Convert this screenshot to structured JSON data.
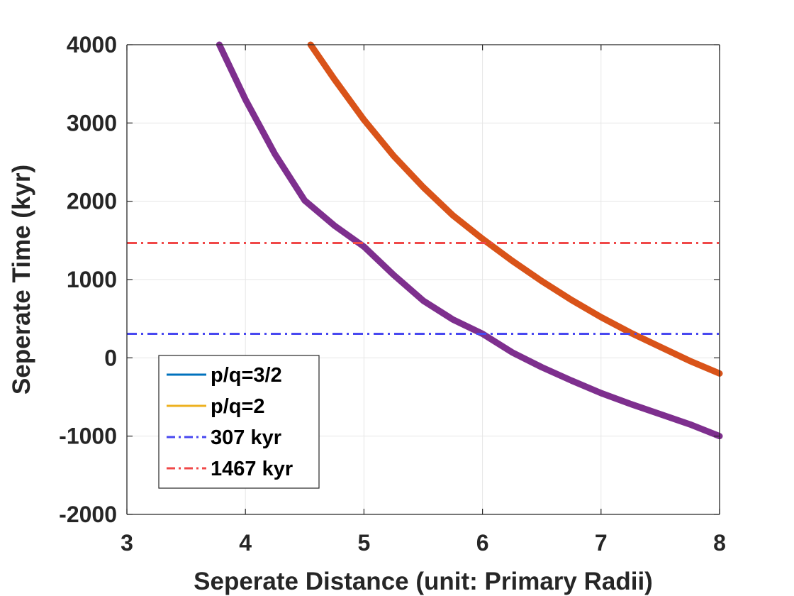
{
  "chart_data": {
    "type": "line",
    "title": "",
    "xlabel": "Seperate Distance (unit: Primary Radii)",
    "ylabel": "Seperate Time (kyr)",
    "xlim": [
      3,
      8
    ],
    "ylim": [
      -2000,
      4000
    ],
    "xticks": [
      "3",
      "4",
      "5",
      "6",
      "7",
      "8"
    ],
    "yticks": [
      "-2000",
      "-1000",
      "0",
      "1000",
      "2000",
      "3000",
      "4000"
    ],
    "grid": true,
    "legend_position": "bottom-left",
    "series": [
      {
        "name": "p/q=3/2",
        "legend_color": "#0072bd",
        "color": "#7e2f8e",
        "style": "solid-band",
        "x": [
          3.78,
          4.0,
          4.25,
          4.5,
          4.75,
          5.0,
          5.25,
          5.5,
          5.75,
          6.0,
          6.25,
          6.5,
          6.75,
          7.0,
          7.25,
          7.5,
          7.75,
          8.0
        ],
        "y": [
          4000,
          3300,
          2600,
          2010,
          1690,
          1420,
          1060,
          730,
          490,
          307,
          70,
          -120,
          -290,
          -450,
          -590,
          -720,
          -850,
          -1000
        ]
      },
      {
        "name": "p/q=2",
        "legend_color": "#edb120",
        "color": "#d95319",
        "style": "solid-band",
        "x": [
          4.55,
          4.75,
          5.0,
          5.25,
          5.5,
          5.75,
          6.0,
          6.25,
          6.5,
          6.75,
          7.0,
          7.25,
          7.5,
          7.75,
          8.0
        ],
        "y": [
          4000,
          3560,
          3040,
          2580,
          2180,
          1820,
          1520,
          1240,
          980,
          740,
          520,
          320,
          140,
          -40,
          -200
        ]
      },
      {
        "name": "307 kyr",
        "color": "#4848f0",
        "style": "dash-dot",
        "x": [
          3,
          8
        ],
        "y": [
          307,
          307
        ]
      },
      {
        "name": "1467 kyr",
        "color": "#f04848",
        "style": "dash-dot",
        "x": [
          3,
          8
        ],
        "y": [
          1467,
          1467
        ]
      }
    ]
  }
}
